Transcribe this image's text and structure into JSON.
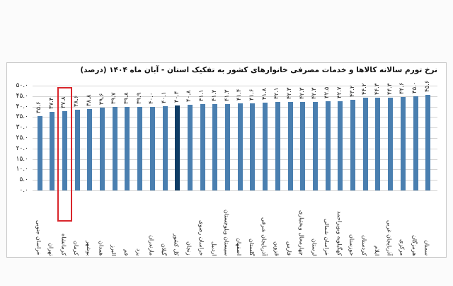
{
  "chart_data": {
    "type": "bar",
    "title": "نرخ تورم سالانه کالاها و خدمات مصرفی خانوارهای کشور به تفکیک استان - آبان ماه ۱۴۰۴ (درصد)",
    "xlabel": "",
    "ylabel": "",
    "ylim": [
      0,
      50
    ],
    "yticks": [
      "۰.۰",
      "۵.۰",
      "۱۰.۰",
      "۱۵.۰",
      "۲۰.۰",
      "۲۵.۰",
      "۳۰.۰",
      "۳۵.۰",
      "۴۰.۰",
      "۴۵.۰",
      "۵۰.۰"
    ],
    "grid": true,
    "legend": "none",
    "highlight": {
      "category": "کرمانشاه",
      "color": "#d9262c",
      "style": "red outline box"
    },
    "total_bar": {
      "category": "کل کشور",
      "color": "#0f3d66"
    },
    "bar_color": "#4a7fb0",
    "categories": [
      "خراسان جنوبی",
      "تهران",
      "کرمانشاه",
      "کرمان",
      "بوشهر",
      "همدان",
      "البرز",
      "قم",
      "یزد",
      "مازندران",
      "گیلان",
      "کل کشور",
      "زنجان",
      "خراسان رضوی",
      "اردبیل",
      "سیستان وبلوچستان",
      "اصفهان",
      "گلستان",
      "آذربایجان شرقی",
      "قزوین",
      "فارس",
      "چهارمحال وبختیاری",
      "لرستان",
      "خراسان شمالی",
      "کهگیلویه وبویراحمد",
      "خوزستان",
      "کردستان",
      "ایلام",
      "آذربایجان غربی",
      "مرکزی",
      "هرمزگان",
      "سمنان"
    ],
    "values": [
      35.6,
      37.4,
      37.8,
      38.6,
      38.8,
      39.6,
      39.7,
      39.8,
      39.9,
      40.0,
      40.1,
      40.4,
      40.8,
      41.1,
      41.2,
      41.3,
      41.4,
      41.6,
      41.8,
      42.1,
      42.3,
      42.3,
      42.3,
      42.5,
      42.7,
      43.2,
      44.2,
      44.3,
      44.3,
      44.6,
      45.0,
      45.6
    ],
    "value_labels": [
      "۳۵.۶",
      "۳۷.۴",
      "۳۷.۸",
      "۳۸.۶",
      "۳۸.۸",
      "۳۹.۶",
      "۳۹.۷",
      "۳۹.۸",
      "۳۹.۹",
      "۴۰.۰",
      "۴۰.۱",
      "۴۰.۴",
      "۴۰.۸",
      "۴۱.۱",
      "۴۱.۲",
      "۴۱.۳",
      "۴۱.۴",
      "۴۱.۶",
      "۴۱.۸",
      "۴۲.۱",
      "۴۲.۳",
      "۴۲.۳",
      "۴۲.۳",
      "۴۲.۵",
      "۴۲.۷",
      "۴۳.۲",
      "۴۴.۲",
      "۴۴.۳",
      "۴۴.۳",
      "۴۴.۶",
      "۴۵.۰",
      "۴۵.۶"
    ]
  }
}
